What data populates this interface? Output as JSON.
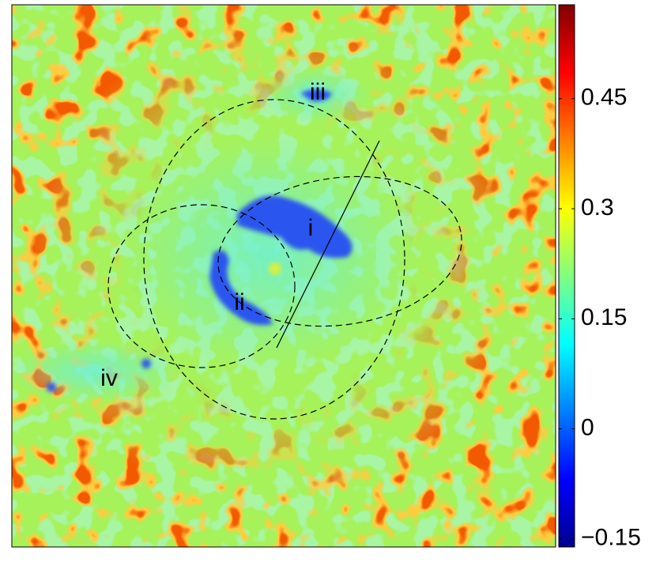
{
  "chart_data": {
    "type": "heatmap",
    "colormap": "jet",
    "annotations": [
      "i",
      "ii",
      "iii",
      "iv"
    ],
    "colorbar": {
      "ylim": [
        -0.161,
        0.578
      ],
      "yticks": [
        {
          "value": -0.15,
          "label": "−0.15"
        },
        0,
        0.15,
        0.3,
        0.45
      ]
    }
  }
}
